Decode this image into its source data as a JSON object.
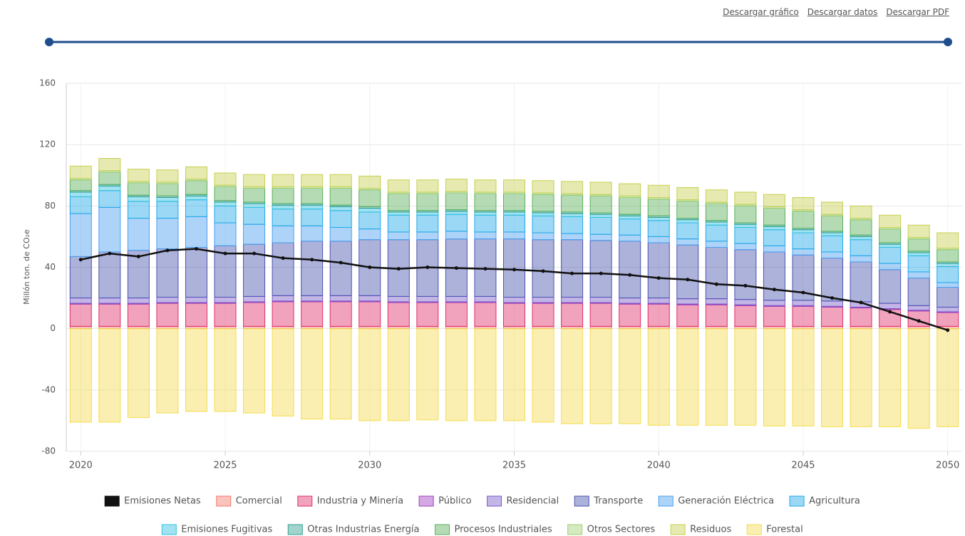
{
  "links": [
    "Descargar gráfico",
    "Descargar datos",
    "Descargar PDF"
  ],
  "chart_data": {
    "type": "bar",
    "stacked": true,
    "y_label": "Millón ton. de CO₂e",
    "x": [
      2020,
      2021,
      2022,
      2023,
      2024,
      2025,
      2026,
      2027,
      2028,
      2029,
      2030,
      2031,
      2032,
      2033,
      2034,
      2035,
      2036,
      2037,
      2038,
      2039,
      2040,
      2041,
      2042,
      2043,
      2044,
      2045,
      2046,
      2047,
      2048,
      2049,
      2050
    ],
    "xlim": [
      2019.5,
      2050.5
    ],
    "xticks": [
      2020,
      2025,
      2030,
      2035,
      2040,
      2045,
      2050
    ],
    "ylim": [
      -80,
      160
    ],
    "yticks": [
      -80,
      -40,
      0,
      40,
      80,
      120,
      160
    ],
    "grid": true,
    "series": [
      {
        "name": "Emisiones Netas",
        "type": "line",
        "color": "#111111",
        "values": [
          45,
          49,
          47,
          51,
          52,
          49,
          49,
          46,
          45,
          43,
          40,
          39,
          40,
          39.5,
          39,
          38.5,
          37.5,
          36,
          36,
          35,
          33,
          32,
          29,
          28,
          25.5,
          23.5,
          20,
          17,
          11,
          5,
          -1
        ]
      },
      {
        "name": "Comercial",
        "color": "#f47a6a",
        "values": [
          1.5,
          1.5,
          1.5,
          1.5,
          1.5,
          1.5,
          1.5,
          1.5,
          1.5,
          1.5,
          1.5,
          1.5,
          1.5,
          1.5,
          1.5,
          1.5,
          1.5,
          1.5,
          1.5,
          1.5,
          1.5,
          1.5,
          1.5,
          1.5,
          1.5,
          1.5,
          1.5,
          1.5,
          1.5,
          1.5,
          1.5
        ]
      },
      {
        "name": "Industria y Minería",
        "color": "#e0306a",
        "values": [
          14.5,
          14.5,
          14.5,
          15,
          15,
          15,
          15.5,
          16,
          16,
          16,
          16,
          15.5,
          15.5,
          15.5,
          15.5,
          15,
          15,
          15,
          15,
          14.5,
          14.5,
          14,
          14,
          13.5,
          13,
          13,
          12.5,
          12,
          11,
          10,
          9
        ]
      },
      {
        "name": "Público",
        "color": "#a040c0",
        "values": [
          0.5,
          0.5,
          0.5,
          0.5,
          0.5,
          0.5,
          0.5,
          0.5,
          0.5,
          0.5,
          0.5,
          0.5,
          0.5,
          0.5,
          0.5,
          0.5,
          0.5,
          0.5,
          0.5,
          0.5,
          0.5,
          0.5,
          0.5,
          0.5,
          0.5,
          0.5,
          0.5,
          0.5,
          0.5,
          0.5,
          0.5
        ]
      },
      {
        "name": "Residencial",
        "color": "#7a5cc8",
        "values": [
          3.5,
          3.5,
          3.5,
          3.5,
          3.5,
          3.5,
          3.5,
          3.5,
          3.5,
          3.5,
          3.5,
          3.5,
          3.5,
          3.5,
          3.5,
          3.5,
          3.5,
          3.5,
          3.5,
          3.5,
          3.5,
          3.5,
          3.5,
          3.5,
          3.5,
          3.5,
          3.5,
          3.5,
          3.5,
          3,
          3
        ]
      },
      {
        "name": "Transporte",
        "color": "#4a54b0",
        "values": [
          27,
          30,
          31,
          31.5,
          32.5,
          33.5,
          34,
          34.5,
          35.5,
          35.5,
          36.5,
          37,
          37,
          37.5,
          37.5,
          38,
          37.5,
          37.5,
          37,
          37,
          36,
          35,
          33.5,
          32.5,
          31.5,
          29.5,
          28,
          26,
          22,
          18,
          13
        ]
      },
      {
        "name": "Generación Eléctrica",
        "color": "#4aa0f0",
        "values": [
          28,
          29,
          21,
          20,
          20,
          15,
          13,
          11,
          10,
          9,
          7,
          5,
          5,
          5,
          4.5,
          4.5,
          4.5,
          4,
          4,
          4,
          4,
          4,
          4,
          4,
          4,
          4,
          4,
          4,
          4,
          4,
          3
        ]
      },
      {
        "name": "Agricultura",
        "color": "#20a8e8",
        "values": [
          11,
          11,
          11,
          11,
          11,
          11,
          11,
          11,
          11,
          11,
          11,
          11,
          11,
          11,
          11,
          11,
          11,
          11,
          11,
          10.5,
          10.5,
          10.5,
          10.5,
          10.5,
          10.5,
          10.5,
          10.5,
          10.5,
          10.5,
          10.5,
          10.5
        ]
      },
      {
        "name": "Emisiones Fugitivas",
        "color": "#30c0e0",
        "values": [
          3,
          3,
          3,
          2.5,
          2.5,
          2.5,
          2.5,
          2.5,
          2.5,
          2.5,
          2.5,
          2,
          2,
          2,
          2,
          2,
          2,
          2,
          2,
          2,
          2,
          2,
          2,
          2,
          2,
          2,
          2,
          2,
          2,
          2,
          2
        ]
      },
      {
        "name": "Otras Industrias Energía",
        "color": "#30a090",
        "values": [
          1,
          1,
          1,
          1,
          1,
          1,
          1,
          1,
          1,
          1,
          1,
          1,
          1,
          1,
          1,
          1,
          1,
          1,
          1,
          1,
          1,
          1,
          1,
          1,
          1,
          1,
          1,
          1,
          1,
          1,
          1
        ]
      },
      {
        "name": "Procesos Industriales",
        "color": "#5cb05c",
        "values": [
          7,
          8,
          8,
          8,
          9,
          9,
          9,
          10,
          10,
          11,
          11,
          11,
          11,
          11,
          11,
          11,
          11,
          11,
          11,
          11,
          11,
          11,
          11,
          11,
          11,
          11,
          10,
          10,
          9,
          8,
          8
        ]
      },
      {
        "name": "Otros Sectores",
        "color": "#a0d070",
        "values": [
          1,
          1,
          1,
          1,
          1,
          1,
          1,
          1,
          1,
          1,
          1,
          1,
          1,
          1,
          1,
          1,
          1,
          1,
          1,
          1,
          1,
          1,
          1,
          1,
          1,
          1,
          1,
          1,
          1,
          1,
          1
        ]
      },
      {
        "name": "Residuos",
        "color": "#c8d050",
        "values": [
          8,
          8,
          8,
          8,
          8,
          8,
          8,
          8,
          8,
          8,
          8,
          8,
          8,
          8,
          8,
          8,
          8,
          8,
          8,
          8,
          8,
          8,
          8,
          8,
          8,
          8,
          8,
          8,
          8,
          8,
          10
        ]
      },
      {
        "name": "Forestal",
        "color": "#f5dc50",
        "values": [
          -61,
          -61,
          -58,
          -55,
          -54,
          -54,
          -55,
          -57,
          -59,
          -59,
          -60,
          -60,
          -59.5,
          -60,
          -60,
          -60,
          -61,
          -62,
          -62,
          -62,
          -63,
          -63,
          -63,
          -63,
          -63.5,
          -63.5,
          -64,
          -64,
          -64,
          -65,
          -64
        ]
      }
    ]
  }
}
